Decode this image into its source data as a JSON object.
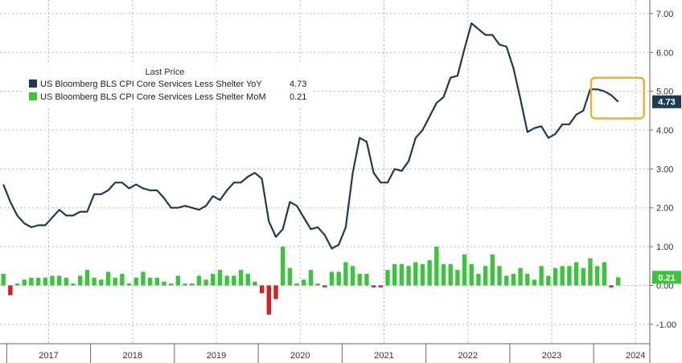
{
  "chart_data": {
    "type": "line+bar",
    "legend": {
      "title": "Last Price",
      "placement": "top-left",
      "entries": [
        {
          "label": "US Bloomberg BLS CPI Core Services Less Shelter YoY",
          "value": "4.73",
          "color": "#1f3a55"
        },
        {
          "label": "US Bloomberg BLS CPI Core Services Less Shelter MoM",
          "value": "0.21",
          "color": "#3cc43c"
        }
      ]
    },
    "ylim": [
      -1.5,
      7.35
    ],
    "yticks": [
      -1,
      0,
      1,
      2,
      3,
      4,
      5,
      6,
      7
    ],
    "ytick_labels": [
      "-1.00",
      "0.00",
      "1.00",
      "2.00",
      "3.00",
      "4.00",
      "5.00",
      "6.00",
      "7.00"
    ],
    "x_range": [
      2016.92,
      2024.67
    ],
    "year_labels": [
      "2017",
      "2018",
      "2019",
      "2020",
      "2021",
      "2022",
      "2023",
      "2024"
    ],
    "year_starts": [
      2017,
      2018,
      2019,
      2020,
      2021,
      2022,
      2023,
      2024,
      2025
    ],
    "grid": true,
    "series": [
      {
        "name": "US Bloomberg BLS CPI Core Services Less Shelter YoY",
        "type": "line",
        "color": "#1f3a55",
        "start": 2016.96,
        "step": 0.08333,
        "values": [
          2.6,
          2.15,
          1.8,
          1.6,
          1.5,
          1.55,
          1.55,
          1.75,
          1.95,
          1.8,
          1.8,
          1.9,
          1.9,
          2.35,
          2.35,
          2.45,
          2.65,
          2.65,
          2.5,
          2.6,
          2.5,
          2.45,
          2.45,
          2.25,
          2.0,
          2.0,
          2.05,
          2.0,
          1.95,
          2.05,
          2.3,
          2.2,
          2.45,
          2.65,
          2.65,
          2.8,
          2.9,
          2.75,
          1.65,
          1.25,
          1.45,
          2.15,
          2.05,
          1.75,
          1.45,
          1.5,
          1.3,
          0.95,
          1.05,
          1.5,
          2.9,
          3.8,
          3.7,
          2.9,
          2.65,
          2.65,
          3.0,
          2.95,
          3.2,
          3.8,
          4.0,
          4.35,
          4.7,
          4.85,
          5.35,
          5.4,
          6.1,
          6.75,
          6.6,
          6.45,
          6.45,
          6.2,
          6.15,
          5.6,
          4.8,
          3.95,
          4.05,
          4.1,
          3.8,
          3.9,
          4.15,
          4.15,
          4.4,
          4.5,
          5.05,
          5.05,
          5.0,
          4.9,
          4.73
        ],
        "last_value": 4.73
      },
      {
        "name": "US Bloomberg BLS CPI Core Services Less Shelter MoM",
        "type": "bar",
        "start": 2016.96,
        "step": 0.08333,
        "values": [
          0.3,
          -0.25,
          0.05,
          0.15,
          0.2,
          0.2,
          0.2,
          0.25,
          0.25,
          0.2,
          0.05,
          0.25,
          0.4,
          0.2,
          0.15,
          0.35,
          0.2,
          0.3,
          0.05,
          0.2,
          0.35,
          0.2,
          0.2,
          0.1,
          0.05,
          0.25,
          0.05,
          0.05,
          0.25,
          0.15,
          0.3,
          0.4,
          0.25,
          0.25,
          0.4,
          0.3,
          0.1,
          -0.2,
          -0.75,
          -0.35,
          1.0,
          0.45,
          0.05,
          0.15,
          0.4,
          0.05,
          -0.05,
          0.35,
          0.35,
          0.6,
          0.5,
          0.3,
          0.3,
          -0.05,
          -0.05,
          0.4,
          0.55,
          0.55,
          0.5,
          0.6,
          0.55,
          0.65,
          1.0,
          0.55,
          0.55,
          0.4,
          0.8,
          0.55,
          0.3,
          0.5,
          0.8,
          0.5,
          0.25,
          0.3,
          0.45,
          0.3,
          0.15,
          0.5,
          0.25,
          0.45,
          0.5,
          0.5,
          0.6,
          0.45,
          0.7,
          0.5,
          0.6,
          -0.05,
          0.21
        ],
        "positive_color": "#3cc43c",
        "negative_color": "#d42020",
        "last_value": 0.21
      }
    ],
    "annotations": [
      {
        "type": "highlight-box",
        "color": "#e8b13a",
        "x_from": 2023.97,
        "x_to": 2024.6,
        "y_from": 4.3,
        "y_to": 5.35
      }
    ],
    "value_flags": [
      {
        "label": "4.73",
        "value": 4.73,
        "background": "#1f3a55",
        "text_color": "#ffffff"
      },
      {
        "label": "0.21",
        "value": 0.21,
        "background": "#3cc43c",
        "text_color": "#ffffff"
      }
    ]
  }
}
